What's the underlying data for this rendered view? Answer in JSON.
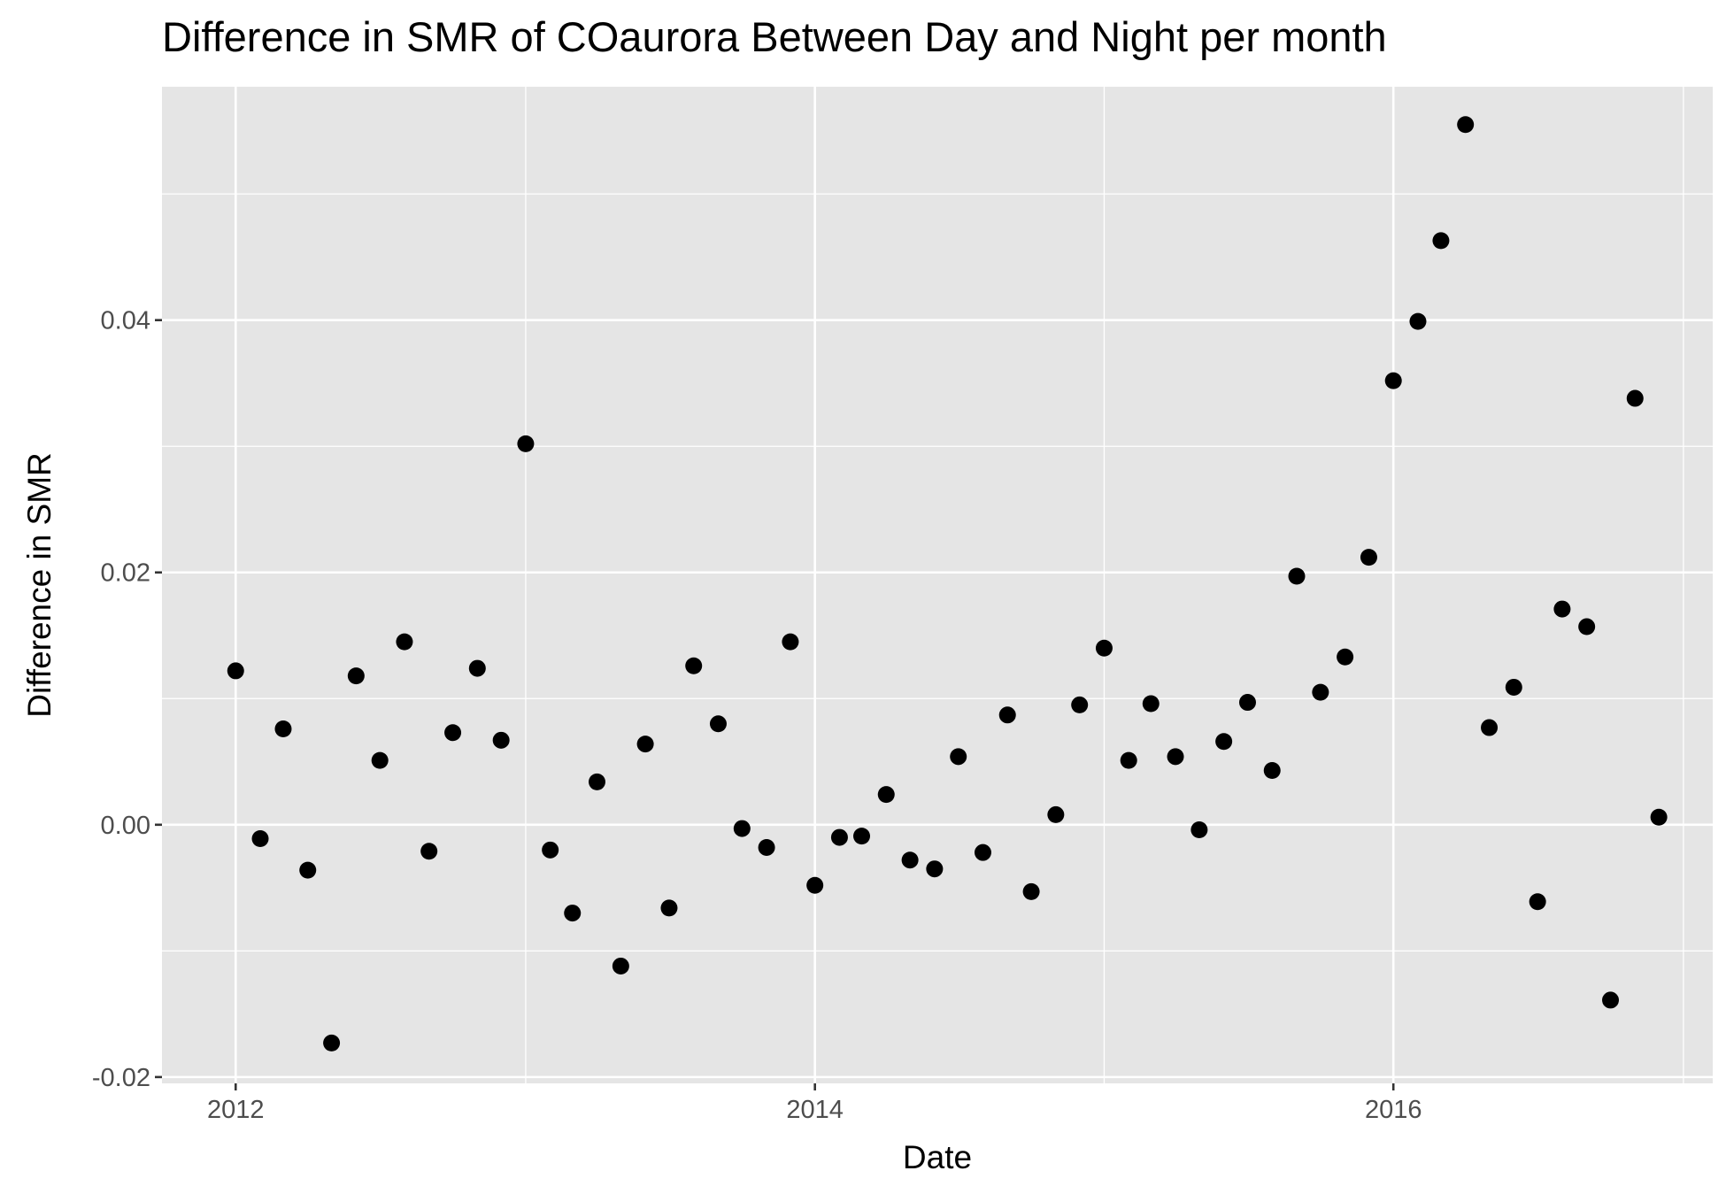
{
  "chart_data": {
    "type": "scatter",
    "title": "Difference in SMR of COaurora Between Day and Night per month",
    "xlabel": "Date",
    "ylabel": "Difference in SMR",
    "x_ticks": [
      "2012",
      "2014",
      "2016"
    ],
    "y_ticks": [
      "-0.02",
      "0.00",
      "0.02",
      "0.04"
    ],
    "xlim": [
      "2011-09-30",
      "2017-02-07"
    ],
    "ylim": [
      -0.0205,
      0.0585
    ],
    "grid": true,
    "legend": "none",
    "colors": {
      "panel": "#e5e5e5",
      "grid": "#ffffff",
      "point": "#000000",
      "tick_text": "#4d4d4d",
      "tick_mark": "#333333"
    },
    "series": [
      {
        "points": [
          {
            "x": "2012-01-01",
            "y": 0.0122
          },
          {
            "x": "2012-02-01",
            "y": -0.0011
          },
          {
            "x": "2012-03-01",
            "y": 0.0076
          },
          {
            "x": "2012-04-01",
            "y": -0.0036
          },
          {
            "x": "2012-05-01",
            "y": -0.0173
          },
          {
            "x": "2012-06-01",
            "y": 0.0118
          },
          {
            "x": "2012-07-01",
            "y": 0.0051
          },
          {
            "x": "2012-08-01",
            "y": 0.0145
          },
          {
            "x": "2012-09-01",
            "y": -0.0021
          },
          {
            "x": "2012-10-01",
            "y": 0.0073
          },
          {
            "x": "2012-11-01",
            "y": 0.0124
          },
          {
            "x": "2012-12-01",
            "y": 0.0067
          },
          {
            "x": "2013-01-01",
            "y": 0.0302
          },
          {
            "x": "2013-02-01",
            "y": -0.002
          },
          {
            "x": "2013-03-01",
            "y": -0.007
          },
          {
            "x": "2013-04-01",
            "y": 0.0034
          },
          {
            "x": "2013-05-01",
            "y": -0.0112
          },
          {
            "x": "2013-06-01",
            "y": 0.0064
          },
          {
            "x": "2013-07-01",
            "y": -0.0066
          },
          {
            "x": "2013-08-01",
            "y": 0.0126
          },
          {
            "x": "2013-09-01",
            "y": 0.008
          },
          {
            "x": "2013-10-01",
            "y": -0.0003
          },
          {
            "x": "2013-11-01",
            "y": -0.0018
          },
          {
            "x": "2013-12-01",
            "y": 0.0145
          },
          {
            "x": "2014-01-01",
            "y": -0.0048
          },
          {
            "x": "2014-02-01",
            "y": -0.001
          },
          {
            "x": "2014-03-01",
            "y": -0.0009
          },
          {
            "x": "2014-04-01",
            "y": 0.0024
          },
          {
            "x": "2014-05-01",
            "y": -0.0028
          },
          {
            "x": "2014-06-01",
            "y": -0.0035
          },
          {
            "x": "2014-07-01",
            "y": 0.0054
          },
          {
            "x": "2014-08-01",
            "y": -0.0022
          },
          {
            "x": "2014-09-01",
            "y": 0.0087
          },
          {
            "x": "2014-10-01",
            "y": -0.0053
          },
          {
            "x": "2014-11-01",
            "y": 0.0008
          },
          {
            "x": "2014-12-01",
            "y": 0.0095
          },
          {
            "x": "2015-01-01",
            "y": 0.014
          },
          {
            "x": "2015-02-01",
            "y": 0.0051
          },
          {
            "x": "2015-03-01",
            "y": 0.0096
          },
          {
            "x": "2015-04-01",
            "y": 0.0054
          },
          {
            "x": "2015-05-01",
            "y": -0.0004
          },
          {
            "x": "2015-06-01",
            "y": 0.0066
          },
          {
            "x": "2015-07-01",
            "y": 0.0097
          },
          {
            "x": "2015-08-01",
            "y": 0.0043
          },
          {
            "x": "2015-09-01",
            "y": 0.0197
          },
          {
            "x": "2015-10-01",
            "y": 0.0105
          },
          {
            "x": "2015-11-01",
            "y": 0.0133
          },
          {
            "x": "2015-12-01",
            "y": 0.0212
          },
          {
            "x": "2016-01-01",
            "y": 0.0352
          },
          {
            "x": "2016-02-01",
            "y": 0.0399
          },
          {
            "x": "2016-03-01",
            "y": 0.0463
          },
          {
            "x": "2016-04-01",
            "y": 0.0555
          },
          {
            "x": "2016-05-01",
            "y": 0.0077
          },
          {
            "x": "2016-06-01",
            "y": 0.0109
          },
          {
            "x": "2016-07-01",
            "y": -0.0061
          },
          {
            "x": "2016-08-01",
            "y": 0.0171
          },
          {
            "x": "2016-09-01",
            "y": 0.0157
          },
          {
            "x": "2016-10-01",
            "y": -0.0139
          },
          {
            "x": "2016-11-01",
            "y": 0.0338
          },
          {
            "x": "2016-12-01",
            "y": 0.0006
          }
        ]
      }
    ]
  }
}
